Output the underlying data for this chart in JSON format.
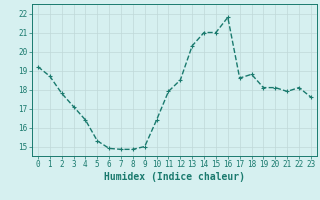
{
  "x": [
    0,
    1,
    2,
    3,
    4,
    5,
    6,
    7,
    8,
    9,
    10,
    11,
    12,
    13,
    14,
    15,
    16,
    17,
    18,
    19,
    20,
    21,
    22,
    23
  ],
  "y": [
    19.2,
    18.7,
    17.8,
    17.1,
    16.4,
    15.3,
    14.9,
    14.85,
    14.85,
    15.0,
    16.4,
    17.9,
    18.5,
    20.3,
    21.0,
    21.0,
    21.8,
    18.6,
    18.8,
    18.1,
    18.1,
    17.9,
    18.1,
    17.6
  ],
  "line_color": "#1a7a6e",
  "marker": "+",
  "marker_size": 3,
  "line_width": 1.0,
  "background_color": "#d6f0f0",
  "grid_color": "#c0d8d8",
  "xlabel": "Humidex (Indice chaleur)",
  "xlim": [
    -0.5,
    23.5
  ],
  "ylim": [
    14.5,
    22.5
  ],
  "yticks": [
    15,
    16,
    17,
    18,
    19,
    20,
    21,
    22
  ],
  "xticks": [
    0,
    1,
    2,
    3,
    4,
    5,
    6,
    7,
    8,
    9,
    10,
    11,
    12,
    13,
    14,
    15,
    16,
    17,
    18,
    19,
    20,
    21,
    22,
    23
  ],
  "tick_labelsize": 5.5,
  "xlabel_fontsize": 7.0,
  "axis_color": "#1a7a6e"
}
